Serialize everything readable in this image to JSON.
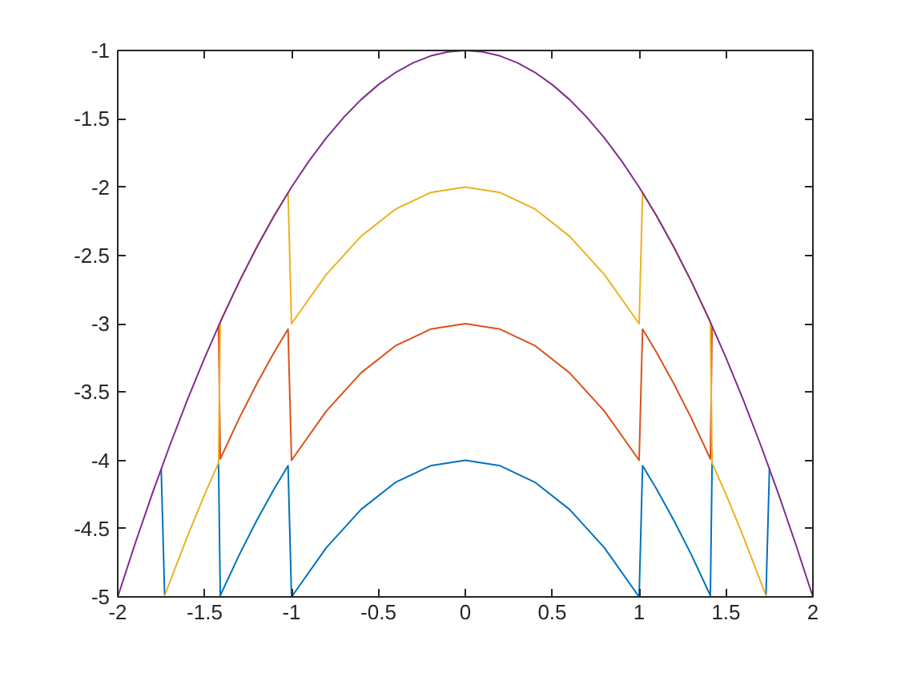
{
  "chart_data": {
    "type": "line",
    "xlim": [
      -2,
      2
    ],
    "ylim": [
      -5,
      -1
    ],
    "xticks": [
      -2,
      -1.5,
      -1,
      -0.5,
      0,
      0.5,
      1,
      1.5,
      2
    ],
    "yticks": [
      -5,
      -4.5,
      -4,
      -3.5,
      -3,
      -2.5,
      -2,
      -1.5,
      -1
    ],
    "grid": false,
    "marker": "none",
    "line_style": "solid",
    "series": [
      {
        "color": "#0072bd",
        "x": [
          -1.75,
          -1.73,
          -1.6,
          -1.5,
          -1.42,
          -1.41,
          -1.3,
          -1.2,
          -1.1,
          -1.02,
          -1.0,
          -0.8,
          -0.6,
          -0.4,
          -0.2,
          0,
          0.2,
          0.4,
          0.6,
          0.8,
          1.0,
          1.02,
          1.1,
          1.2,
          1.3,
          1.41,
          1.42,
          1.5,
          1.6,
          1.73,
          1.75
        ],
        "values": [
          -4.06,
          -4.99,
          null,
          null,
          -4.02,
          -4.99,
          -4.69,
          -4.44,
          -4.21,
          -4.04,
          -5,
          -4.64,
          -4.36,
          -4.16,
          -4.04,
          -4,
          -4.04,
          -4.16,
          -4.36,
          -4.64,
          -5,
          -4.04,
          -4.21,
          -4.44,
          -4.69,
          -4.99,
          -4.02,
          null,
          null,
          -4.99,
          -4.06
        ]
      },
      {
        "color": "#d95319",
        "x": [
          -1.42,
          -1.41,
          -1.3,
          -1.2,
          -1.1,
          -1.02,
          -1.0,
          -0.8,
          -0.6,
          -0.4,
          -0.2,
          0,
          0.2,
          0.4,
          0.6,
          0.8,
          1.0,
          1.02,
          1.1,
          1.2,
          1.3,
          1.41,
          1.42
        ],
        "values": [
          -3.02,
          -3.99,
          -3.69,
          -3.44,
          -3.21,
          -3.04,
          -4,
          -3.64,
          -3.36,
          -3.16,
          -3.04,
          -3,
          -3.04,
          -3.16,
          -3.36,
          -3.64,
          -4,
          -3.04,
          -3.21,
          -3.44,
          -3.69,
          -3.99,
          -3.02
        ]
      },
      {
        "color": "#edb120",
        "x": [
          -1.73,
          -1.6,
          -1.5,
          -1.42,
          -1.41,
          -1.3,
          -1.2,
          -1.1,
          -1.02,
          -1.0,
          -0.8,
          -0.6,
          -0.4,
          -0.2,
          0,
          0.2,
          0.4,
          0.6,
          0.8,
          1.0,
          1.02,
          1.1,
          1.2,
          1.3,
          1.41,
          1.42,
          1.5,
          1.6,
          1.73
        ],
        "values": [
          -4.99,
          -4.56,
          -4.25,
          -4.02,
          -2.99,
          -2.69,
          -2.44,
          -2.21,
          -2.04,
          -3,
          -2.64,
          -2.36,
          -2.16,
          -2.04,
          -2,
          -2.04,
          -2.16,
          -2.36,
          -2.64,
          -3,
          -2.04,
          -2.21,
          -2.44,
          -2.69,
          -2.99,
          -4.02,
          -4.25,
          -4.56,
          -4.99
        ]
      },
      {
        "color": "#7e2f8e",
        "x": [
          -2,
          -1.9,
          -1.8,
          -1.7,
          -1.6,
          -1.5,
          -1.4,
          -1.3,
          -1.2,
          -1.1,
          -1,
          -0.9,
          -0.8,
          -0.7,
          -0.6,
          -0.5,
          -0.4,
          -0.3,
          -0.2,
          -0.1,
          0,
          0.1,
          0.2,
          0.3,
          0.4,
          0.5,
          0.6,
          0.7,
          0.8,
          0.9,
          1,
          1.1,
          1.2,
          1.3,
          1.4,
          1.5,
          1.6,
          1.7,
          1.8,
          1.9,
          2
        ],
        "values": [
          -5,
          -4.61,
          -4.24,
          -3.89,
          -3.56,
          -3.25,
          -2.96,
          -2.69,
          -2.44,
          -2.21,
          -2,
          -1.81,
          -1.64,
          -1.49,
          -1.36,
          -1.25,
          -1.16,
          -1.09,
          -1.04,
          -1.01,
          -1,
          -1.01,
          -1.04,
          -1.09,
          -1.16,
          -1.25,
          -1.36,
          -1.49,
          -1.64,
          -1.81,
          -2,
          -2.21,
          -2.44,
          -2.69,
          -2.96,
          -3.25,
          -3.56,
          -3.89,
          -4.24,
          -4.61,
          -5
        ]
      }
    ]
  }
}
